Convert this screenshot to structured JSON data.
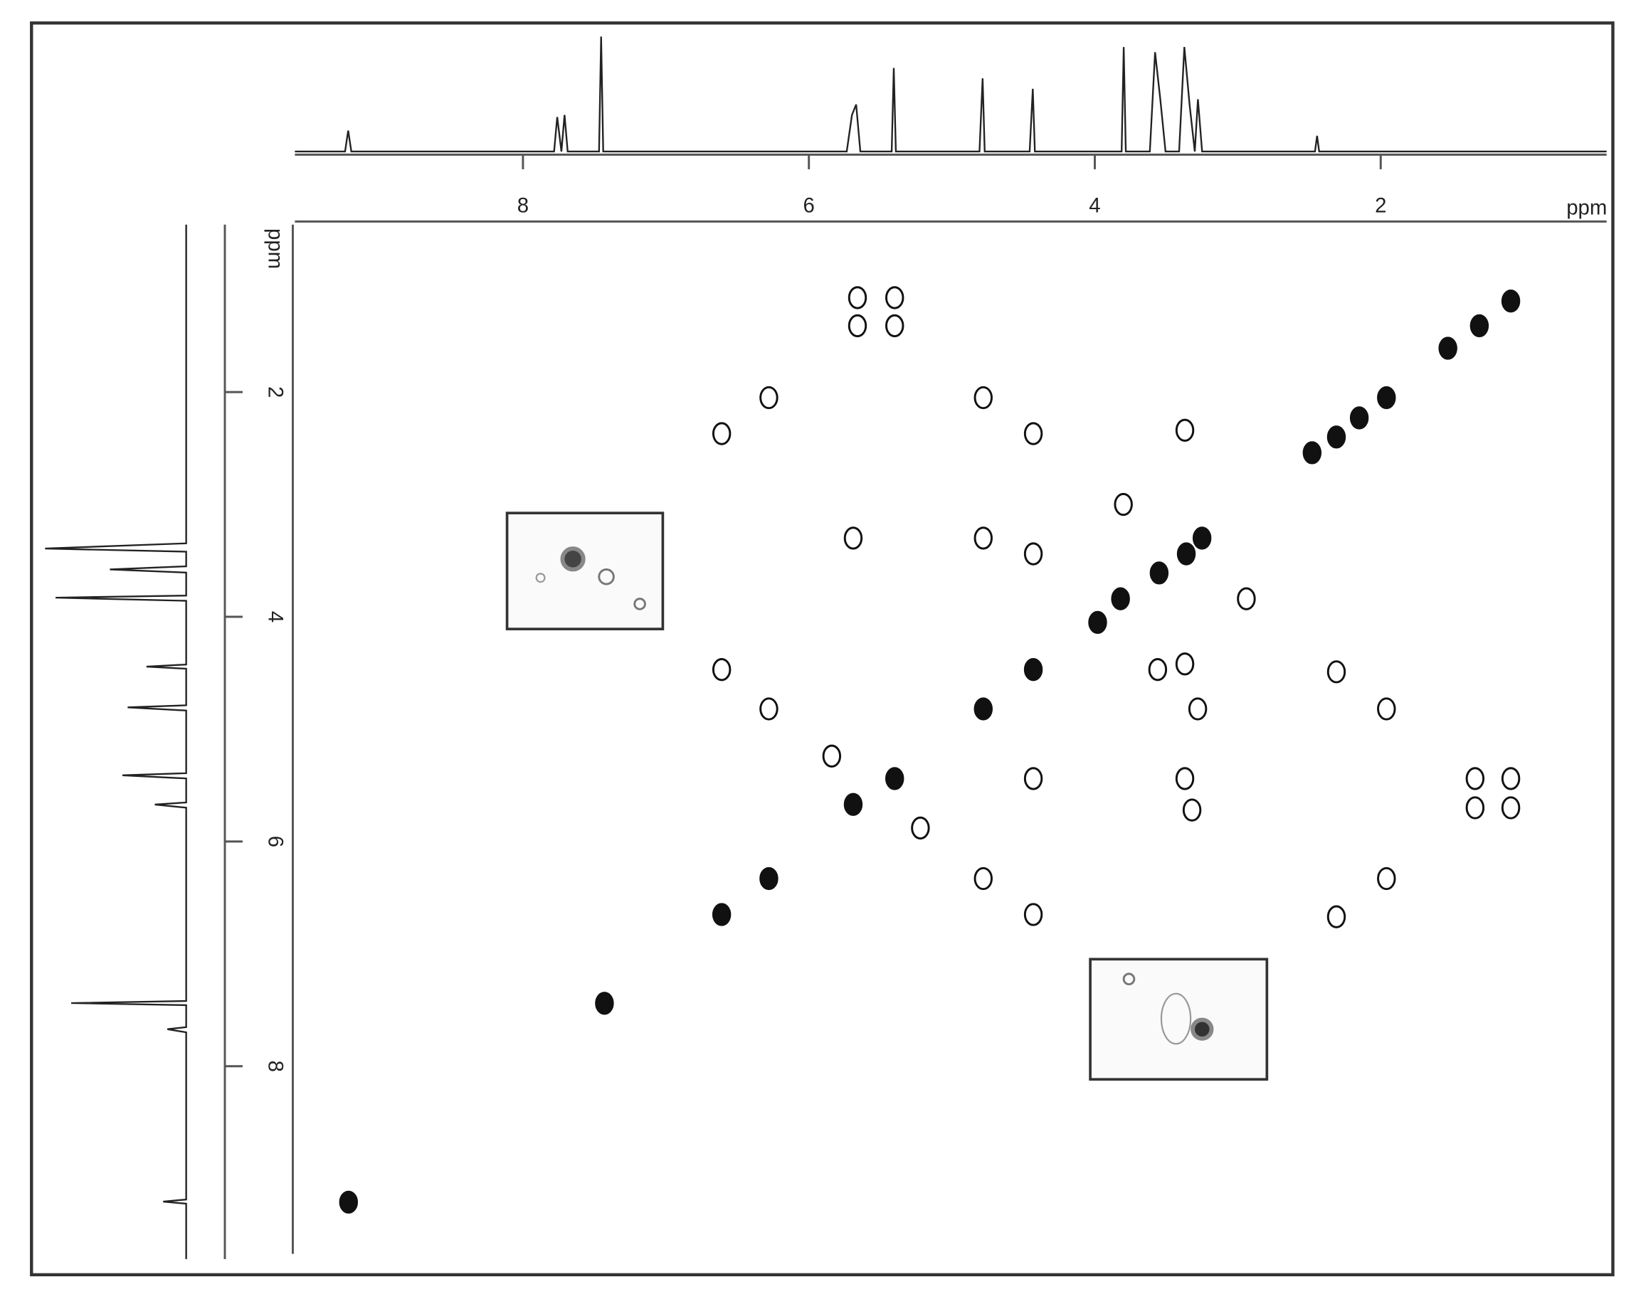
{
  "chart_data": {
    "type": "scatter",
    "xlabel": "ppm",
    "ylabel": "ppm",
    "xlim": [
      9.61,
      0.42
    ],
    "ylim": [
      0.51,
      9.67
    ],
    "xticks": [
      8,
      6,
      4,
      2
    ],
    "yticks": [
      2,
      4,
      6,
      8
    ],
    "grid": false,
    "color": "#111111",
    "x": [
      5.66,
      5.4,
      5.66,
      5.4,
      6.28,
      4.78,
      6.61,
      4.43,
      3.37,
      3.8,
      5.69,
      4.78,
      4.43,
      3.25,
      3.36,
      3.55,
      3.82,
      2.94,
      3.98,
      6.61,
      4.43,
      3.56,
      3.37,
      2.31,
      6.28,
      4.78,
      3.28,
      1.96,
      4.43,
      3.37,
      1.34,
      1.09,
      5.4,
      5.69,
      3.32,
      1.34,
      1.09,
      4.78,
      1.96,
      4.43,
      6.61,
      2.31,
      6.28,
      7.43,
      1.53,
      1.31,
      1.09,
      1.96,
      2.15,
      2.31,
      2.48,
      5.84,
      5.22,
      9.22
    ],
    "y": [
      1.16,
      1.16,
      1.41,
      1.41,
      2.05,
      2.05,
      2.37,
      2.37,
      2.34,
      3.0,
      3.3,
      3.3,
      3.44,
      3.3,
      3.44,
      3.61,
      3.84,
      3.84,
      4.05,
      4.47,
      4.47,
      4.47,
      4.42,
      4.49,
      4.82,
      4.82,
      4.82,
      4.82,
      5.44,
      5.44,
      5.44,
      5.44,
      5.44,
      5.67,
      5.72,
      5.7,
      5.7,
      6.33,
      6.33,
      6.65,
      6.65,
      6.67,
      6.33,
      7.44,
      1.61,
      1.41,
      1.19,
      2.05,
      2.23,
      2.4,
      2.54,
      5.24,
      5.88,
      9.21
    ]
  }
}
